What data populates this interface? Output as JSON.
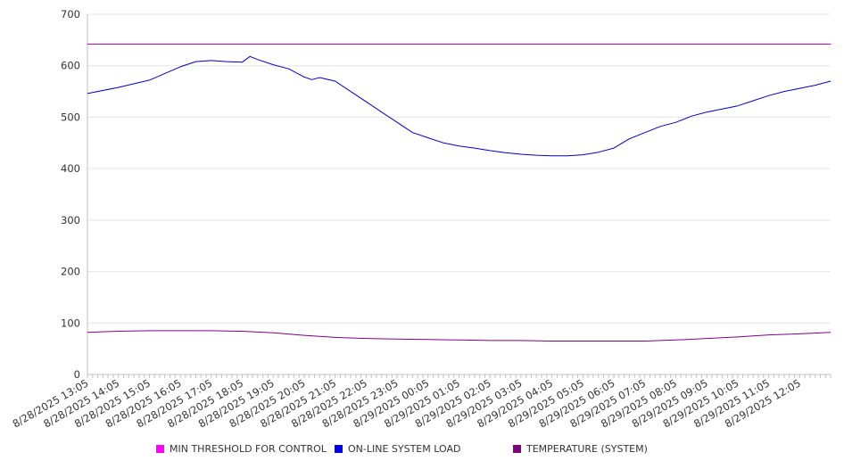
{
  "chart_data": {
    "type": "line",
    "title": "",
    "xlabel": "",
    "ylabel": "",
    "ylim": [
      0,
      700
    ],
    "yticks": [
      "0",
      "100",
      "200",
      "300",
      "400",
      "500",
      "600",
      "700"
    ],
    "x_tick_labels": [
      "8/28/2025 13:05",
      "8/28/2025 14:05",
      "8/28/2025 15:05",
      "8/28/2025 16:05",
      "8/28/2025 17:05",
      "8/28/2025 18:05",
      "8/28/2025 19:05",
      "8/28/2025 20:05",
      "8/28/2025 21:05",
      "8/28/2025 22:05",
      "8/28/2025 23:05",
      "8/29/2025 00:05",
      "8/29/2025 01:05",
      "8/29/2025 02:05",
      "8/29/2025 03:05",
      "8/29/2025 04:05",
      "8/29/2025 05:05",
      "8/29/2025 06:05",
      "8/29/2025 07:05",
      "8/29/2025 08:05",
      "8/29/2025 09:05",
      "8/29/2025 10:05",
      "8/29/2025 11:05",
      "8/29/2025 12:05"
    ],
    "x_range": [
      "8/28/2025 13:05",
      "8/29/2025 13:05"
    ],
    "grid": "horizontal",
    "legend_position": "bottom",
    "series": [
      {
        "name": "MIN THRESHOLD FOR CONTROL",
        "color": "#cc00cc",
        "x": [
          "8/28/2025 13:05",
          "8/29/2025 13:05"
        ],
        "y": [
          642,
          642
        ]
      },
      {
        "name": "ON-LINE SYSTEM LOAD",
        "color": "#0000cc",
        "x": [
          "8/28/2025 13:05",
          "8/28/2025 14:05",
          "8/28/2025 15:05",
          "8/28/2025 15:35",
          "8/28/2025 16:05",
          "8/28/2025 16:35",
          "8/28/2025 17:05",
          "8/28/2025 17:35",
          "8/28/2025 18:05",
          "8/28/2025 18:20",
          "8/28/2025 18:35",
          "8/28/2025 19:05",
          "8/28/2025 19:35",
          "8/28/2025 20:05",
          "8/28/2025 20:20",
          "8/28/2025 20:35",
          "8/28/2025 21:05",
          "8/28/2025 21:35",
          "8/28/2025 22:05",
          "8/28/2025 22:35",
          "8/28/2025 23:05",
          "8/28/2025 23:35",
          "8/29/2025 00:05",
          "8/29/2025 00:35",
          "8/29/2025 01:05",
          "8/29/2025 01:35",
          "8/29/2025 02:05",
          "8/29/2025 02:35",
          "8/29/2025 03:05",
          "8/29/2025 03:35",
          "8/29/2025 04:05",
          "8/29/2025 04:35",
          "8/29/2025 05:05",
          "8/29/2025 05:35",
          "8/29/2025 06:05",
          "8/29/2025 06:35",
          "8/29/2025 07:05",
          "8/29/2025 07:35",
          "8/29/2025 08:05",
          "8/29/2025 08:35",
          "8/29/2025 09:05",
          "8/29/2025 09:35",
          "8/29/2025 10:05",
          "8/29/2025 10:35",
          "8/29/2025 11:05",
          "8/29/2025 11:35",
          "8/29/2025 12:05",
          "8/29/2025 12:35",
          "8/29/2025 13:05"
        ],
        "y": [
          546,
          558,
          572,
          585,
          598,
          608,
          610,
          608,
          607,
          618,
          612,
          602,
          594,
          578,
          573,
          577,
          570,
          550,
          530,
          510,
          490,
          470,
          460,
          450,
          444,
          440,
          435,
          431,
          428,
          426,
          425,
          425,
          427,
          432,
          440,
          458,
          470,
          482,
          490,
          502,
          510,
          516,
          522,
          532,
          542,
          550,
          556,
          562,
          570
        ]
      },
      {
        "name": "TEMPERATURE (SYSTEM)",
        "color": "#800080",
        "x": [
          "8/28/2025 13:05",
          "8/28/2025 14:05",
          "8/28/2025 15:05",
          "8/28/2025 16:05",
          "8/28/2025 17:05",
          "8/28/2025 18:05",
          "8/28/2025 19:05",
          "8/28/2025 20:05",
          "8/28/2025 21:05",
          "8/28/2025 22:05",
          "8/28/2025 23:05",
          "8/29/2025 00:05",
          "8/29/2025 01:05",
          "8/29/2025 02:05",
          "8/29/2025 03:05",
          "8/29/2025 04:05",
          "8/29/2025 05:05",
          "8/29/2025 06:05",
          "8/29/2025 07:05",
          "8/29/2025 08:05",
          "8/29/2025 09:05",
          "8/29/2025 10:05",
          "8/29/2025 11:05",
          "8/29/2025 12:05",
          "8/29/2025 13:05"
        ],
        "y": [
          82,
          84,
          85,
          85,
          85,
          84,
          81,
          76,
          72,
          70,
          69,
          68,
          67,
          66,
          66,
          65,
          65,
          65,
          65,
          67,
          70,
          73,
          77,
          79,
          82
        ]
      }
    ]
  },
  "colors": {
    "grid": "#e6e6e6",
    "axis": "#c0c0c0",
    "text": "#333333"
  }
}
